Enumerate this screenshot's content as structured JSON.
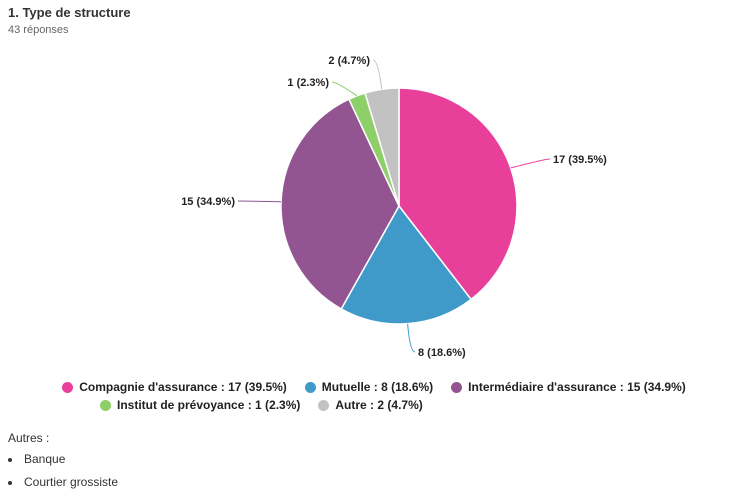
{
  "question": {
    "title": "1. Type de structure",
    "responses": "43 réponses"
  },
  "chart_data": {
    "type": "pie",
    "slices": [
      {
        "label": "Compagnie d'assurance",
        "value": 17,
        "percent": "39.5%",
        "color": "#e8409a"
      },
      {
        "label": "Mutuelle",
        "value": 8,
        "percent": "18.6%",
        "color": "#3f9ac9"
      },
      {
        "label": "Intermédiaire d'assurance",
        "value": 15,
        "percent": "34.9%",
        "color": "#925592"
      },
      {
        "label": "Institut de prévoyance",
        "value": 1,
        "percent": "2.3%",
        "color": "#8fcf6a"
      },
      {
        "label": "Autre",
        "value": 2,
        "percent": "4.7%",
        "color": "#c2c2c2"
      }
    ],
    "data_labels": [
      "17 (39.5%)",
      "8 (18.6%)",
      "15 (34.9%)",
      "1 (2.3%)",
      "2 (4.7%)"
    ],
    "legend_position": "bottom",
    "legend_labels": [
      "Compagnie d'assurance : 17 (39.5%)",
      "Mutuelle : 8 (18.6%)",
      "Intermédiaire d'assurance : 15 (34.9%)",
      "Institut de prévoyance : 1 (2.3%)",
      "Autre : 2 (4.7%)"
    ]
  },
  "others": {
    "title": "Autres :",
    "items": [
      "Banque",
      "Courtier grossiste"
    ]
  }
}
